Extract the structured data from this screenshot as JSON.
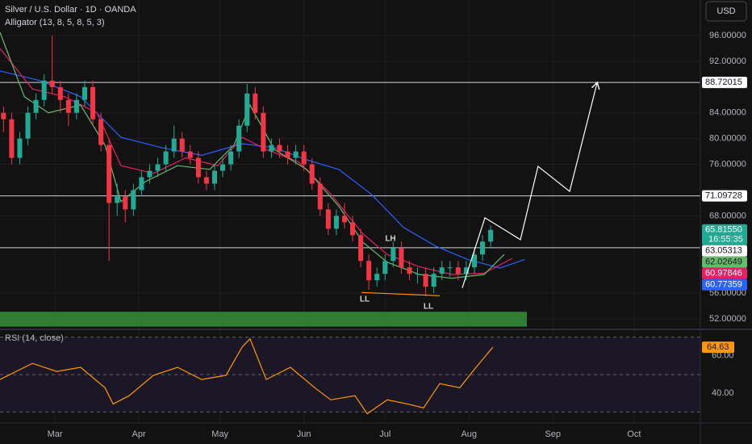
{
  "header": {
    "symbol": "Silver / U.S. Dollar · 1D · OANDA",
    "indicator": "Alligator (13, 8, 5, 8, 5, 3)",
    "currency": "USD"
  },
  "chart_data": [
    {
      "type": "candlestick",
      "x": [
        -19,
        -16,
        -13,
        -10,
        -7,
        -4,
        -1,
        2,
        5,
        8,
        11,
        14,
        17,
        20,
        23,
        26,
        29,
        32,
        35,
        38,
        41,
        44,
        47,
        50,
        53,
        56,
        59,
        62,
        65,
        68,
        71,
        74,
        77,
        80,
        83,
        86,
        89,
        92,
        95,
        98,
        101,
        104,
        107,
        110,
        113,
        116,
        119,
        122,
        125,
        128,
        131,
        134,
        137,
        140,
        143,
        146,
        149,
        152,
        155,
        158,
        161
      ],
      "ohlc": [
        [
          84,
          85,
          81,
          83
        ],
        [
          83,
          84,
          76,
          77
        ],
        [
          77,
          81,
          76,
          80
        ],
        [
          80,
          85,
          79,
          84
        ],
        [
          84,
          87,
          83,
          86
        ],
        [
          86,
          90,
          85,
          89
        ],
        [
          89,
          96,
          87,
          88
        ],
        [
          88,
          89,
          84,
          86
        ],
        [
          86,
          87,
          82,
          84
        ],
        [
          84,
          87,
          83,
          86
        ],
        [
          86,
          89,
          85,
          88
        ],
        [
          88,
          89,
          82,
          83
        ],
        [
          83,
          84,
          78,
          79
        ],
        [
          79,
          80,
          61,
          70
        ],
        [
          70,
          73,
          68,
          71
        ],
        [
          71,
          72,
          67,
          69
        ],
        [
          69,
          73,
          68,
          72
        ],
        [
          72,
          75,
          71,
          74
        ],
        [
          74,
          76,
          73,
          75
        ],
        [
          75,
          77,
          74,
          76
        ],
        [
          76,
          79,
          75,
          78
        ],
        [
          78,
          82,
          77,
          80
        ],
        [
          80,
          81,
          77,
          78
        ],
        [
          78,
          79,
          76,
          77
        ],
        [
          77,
          78,
          73,
          74
        ],
        [
          74,
          75,
          72,
          73
        ],
        [
          73,
          76,
          72,
          75
        ],
        [
          75,
          77,
          74,
          76
        ],
        [
          76,
          79,
          75,
          78
        ],
        [
          78,
          83,
          77,
          82
        ],
        [
          82,
          88.5,
          81,
          87
        ],
        [
          87,
          88,
          83,
          84
        ],
        [
          84,
          85,
          77,
          78
        ],
        [
          78,
          80,
          77,
          79
        ],
        [
          79,
          80,
          77,
          78
        ],
        [
          78,
          79,
          76,
          77
        ],
        [
          77,
          79,
          76,
          78
        ],
        [
          78,
          79,
          75,
          76
        ],
        [
          76,
          77,
          72,
          73
        ],
        [
          73,
          74,
          68,
          69
        ],
        [
          69,
          70,
          65,
          66
        ],
        [
          66,
          69,
          65,
          68
        ],
        [
          68,
          70,
          66,
          67
        ],
        [
          67,
          68,
          64,
          65
        ],
        [
          65,
          66,
          60,
          61
        ],
        [
          61,
          62,
          56.5,
          58
        ],
        [
          58,
          60,
          57,
          59
        ],
        [
          59,
          62,
          58,
          61
        ],
        [
          61,
          64,
          60,
          63
        ],
        [
          63,
          64,
          59,
          60
        ],
        [
          60,
          61,
          58,
          59
        ],
        [
          59,
          60,
          57.5,
          59
        ],
        [
          59,
          60,
          55.5,
          57
        ],
        [
          57,
          60,
          56,
          59
        ],
        [
          59,
          61,
          58,
          60
        ],
        [
          60,
          61,
          58.5,
          60
        ],
        [
          60,
          61,
          58,
          59
        ],
        [
          59,
          61,
          58,
          60
        ],
        [
          60,
          63,
          59,
          62
        ],
        [
          62,
          65,
          61,
          64
        ],
        [
          64,
          66.5,
          63,
          65.8155
        ]
      ],
      "close_label": "65.81550",
      "countdown": "16:55:35",
      "colors": {
        "up": "#22ab94",
        "down": "#f23645"
      },
      "xlim": [
        -20.3,
        238.5
      ],
      "xticks": [
        {
          "value": 0,
          "label": "Mar"
        },
        {
          "value": 31,
          "label": "Apr"
        },
        {
          "value": 61,
          "label": "May"
        },
        {
          "value": 92,
          "label": "Jun"
        },
        {
          "value": 122,
          "label": "Jul"
        },
        {
          "value": 153,
          "label": "Aug"
        },
        {
          "value": 184,
          "label": "Sep"
        },
        {
          "value": 214,
          "label": "Oct"
        }
      ],
      "ylim": [
        50.37,
        101.52
      ],
      "yticks": [
        {
          "value": 96,
          "label": "96.00000"
        },
        {
          "value": 92,
          "label": "92.00000"
        },
        {
          "value": 84,
          "label": "84.00000"
        },
        {
          "value": 80,
          "label": "80.00000"
        },
        {
          "value": 76,
          "label": "76.00000"
        },
        {
          "value": 68,
          "label": "68.00000"
        },
        {
          "value": 56,
          "label": "56.00000"
        },
        {
          "value": 52,
          "label": "52.00000"
        }
      ],
      "grid": true,
      "lines": [
        {
          "color": "#2962ff",
          "tag": 60.77359,
          "x": [
            -20.3,
            -5.4,
            9.5,
            24.4,
            39.3,
            54.2,
            69.2,
            81.1,
            93,
            104.9,
            116.8,
            128.8,
            140.7,
            152.6,
            164.5,
            173.5
          ],
          "values": [
            90.5,
            89,
            86.5,
            80.2,
            78.6,
            77.4,
            79.2,
            78.6,
            76.7,
            75.2,
            71.4,
            66.2,
            63.3,
            61.2,
            59.9,
            61.2
          ]
        },
        {
          "color": "#e91e63",
          "tag": 60.97846,
          "x": [
            -20.3,
            -8.3,
            3.6,
            15.5,
            24.4,
            36.4,
            48.3,
            60.2,
            69.2,
            78.1,
            90,
            101.9,
            113.8,
            122.8,
            134.7,
            146.6,
            158.6,
            169
          ],
          "values": [
            94,
            87.7,
            86.5,
            84,
            75.8,
            74.6,
            77,
            75.8,
            80.2,
            78.3,
            76.4,
            71.4,
            65.2,
            62,
            60.1,
            58.9,
            59.1,
            61.4
          ]
        },
        {
          "color": "#66bb6a",
          "tag": 62.02649,
          "x": [
            -20.3,
            -11.3,
            -2.4,
            9.5,
            18.5,
            24.4,
            33.4,
            45.3,
            57.2,
            66.2,
            72.1,
            81.1,
            93,
            104.9,
            113.8,
            122.8,
            134.7,
            146.6,
            158.6,
            166
          ],
          "values": [
            96.5,
            86.5,
            84,
            85.2,
            79,
            70.2,
            73.3,
            75.8,
            75.2,
            79,
            85.2,
            78.3,
            75.2,
            69.5,
            63.9,
            60.8,
            58.9,
            58.3,
            58.9,
            62
          ]
        }
      ],
      "levels": [
        88.72015,
        71.09728,
        63.05313
      ],
      "zone": {
        "range": [
          50.8,
          53.1
        ],
        "x": [
          -20.3,
          174.4
        ],
        "color": "#2e7d32"
      },
      "projection": {
        "x": [
          150.5,
          158.9,
          172,
          178.5,
          190.2,
          200.3
        ],
        "values": [
          56.8,
          67.7,
          64.3,
          75.7,
          71.8,
          88.6
        ]
      },
      "support": {
        "color": "#ff9800",
        "x": [
          113.3,
          142.2
        ],
        "values": [
          56.1,
          55.6
        ]
      },
      "annotations": [
        "LH",
        "LL",
        "LL"
      ]
    },
    {
      "type": "line",
      "title": "RSI (14, close)",
      "color": "#ff9800",
      "x": [
        -20.3,
        -8.3,
        0.6,
        9.5,
        18.5,
        21.5,
        27.4,
        36.4,
        45.3,
        54.2,
        63.2,
        69.2,
        72.1,
        78.1,
        87,
        96,
        101.9,
        110.9,
        115.4,
        122.8,
        130.3,
        136.2,
        142.2,
        149.6,
        155.6,
        161.8
      ],
      "values": [
        47.4,
        56,
        51.7,
        53.9,
        43,
        34.3,
        38.7,
        49.6,
        53.9,
        47.4,
        49.6,
        64.8,
        69.1,
        47.4,
        53.9,
        43,
        36.5,
        38.7,
        29.1,
        36.5,
        34.3,
        32.2,
        45.2,
        43,
        53.9,
        64.63
      ],
      "xlim": [
        -20.3,
        238.5
      ],
      "ylim": [
        25,
        72
      ],
      "yticks": [
        {
          "value": 60,
          "label": "60.00"
        },
        {
          "value": 40,
          "label": "40.00"
        }
      ],
      "levels": [
        70,
        50,
        30
      ]
    }
  ]
}
